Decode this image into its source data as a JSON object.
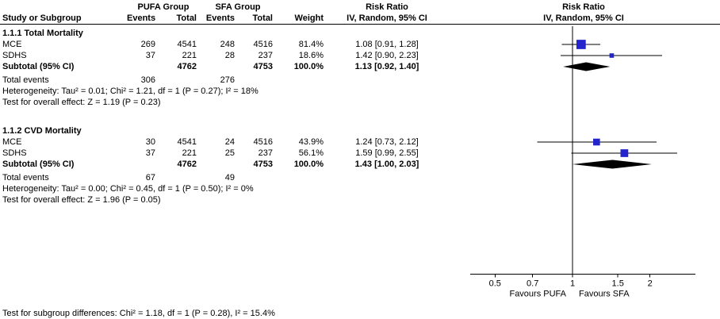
{
  "header": {
    "study_col": "Study or Subgroup",
    "pufa_group": "PUFA Group",
    "sfa_group": "SFA Group",
    "events": "Events",
    "total": "Total",
    "weight": "Weight",
    "risk_ratio_col": "Risk Ratio",
    "ci_method_col": "IV, Random, 95% CI",
    "risk_ratio_plot": "Risk Ratio",
    "ci_method_plot": "IV, Random, 95% CI"
  },
  "labels": {
    "total_events": "Total events"
  },
  "chart_data": {
    "type": "forest",
    "scale": "log",
    "effect_measure": "Risk Ratio",
    "null_line": 1,
    "axis_ticks": [
      0.5,
      0.7,
      1,
      1.5,
      2
    ],
    "axis_range": [
      0.4,
      3.0
    ],
    "favours_left": "Favours PUFA",
    "favours_right": "Favours SFA",
    "marker_color": "#2424CC",
    "diamond_color": "#000000",
    "subgroups": [
      {
        "title": "1.1.1 Total Mortality",
        "studies": [
          {
            "name": "MCE",
            "events_pufa": 269,
            "total_pufa": 4541,
            "events_sfa": 248,
            "total_sfa": 4516,
            "weight_pct": 81.4,
            "weight_text": "81.4%",
            "rr": 1.08,
            "ci_low": 0.91,
            "ci_high": 1.28,
            "ci_text": "1.08 [0.91, 1.28]"
          },
          {
            "name": "SDHS",
            "events_pufa": 37,
            "total_pufa": 221,
            "events_sfa": 28,
            "total_sfa": 237,
            "weight_pct": 18.6,
            "weight_text": "18.6%",
            "rr": 1.42,
            "ci_low": 0.9,
            "ci_high": 2.23,
            "ci_text": "1.42 [0.90, 2.23]"
          }
        ],
        "subtotal": {
          "label": "Subtotal (95% CI)",
          "total_pufa": 4762,
          "total_sfa": 4753,
          "weight_text": "100.0%",
          "rr": 1.13,
          "ci_low": 0.92,
          "ci_high": 1.4,
          "ci_text": "1.13 [0.92, 1.40]"
        },
        "total_events_pufa": 306,
        "total_events_sfa": 276,
        "heterogeneity": "Heterogeneity: Tau² = 0.01; Chi² = 1.21, df = 1 (P = 0.27); I² = 18%",
        "overall_effect": "Test for overall effect: Z = 1.19 (P = 0.23)"
      },
      {
        "title": "1.1.2 CVD Mortality",
        "studies": [
          {
            "name": "MCE",
            "events_pufa": 30,
            "total_pufa": 4541,
            "events_sfa": 24,
            "total_sfa": 4516,
            "weight_pct": 43.9,
            "weight_text": "43.9%",
            "rr": 1.24,
            "ci_low": 0.73,
            "ci_high": 2.12,
            "ci_text": "1.24 [0.73, 2.12]"
          },
          {
            "name": "SDHS",
            "events_pufa": 37,
            "total_pufa": 221,
            "events_sfa": 25,
            "total_sfa": 237,
            "weight_pct": 56.1,
            "weight_text": "56.1%",
            "rr": 1.59,
            "ci_low": 0.99,
            "ci_high": 2.55,
            "ci_text": "1.59 [0.99, 2.55]"
          }
        ],
        "subtotal": {
          "label": "Subtotal (95% CI)",
          "total_pufa": 4762,
          "total_sfa": 4753,
          "weight_text": "100.0%",
          "rr": 1.43,
          "ci_low": 1.0,
          "ci_high": 2.03,
          "ci_text": "1.43 [1.00, 2.03]"
        },
        "total_events_pufa": 67,
        "total_events_sfa": 49,
        "heterogeneity": "Heterogeneity: Tau² = 0.00; Chi² = 0.45, df = 1 (P = 0.50); I² = 0%",
        "overall_effect": "Test for overall effect: Z = 1.96 (P = 0.05)"
      }
    ],
    "footer": "Test for subgroup differences: Chi² = 1.18, df = 1 (P = 0.28), I² = 15.4%"
  }
}
